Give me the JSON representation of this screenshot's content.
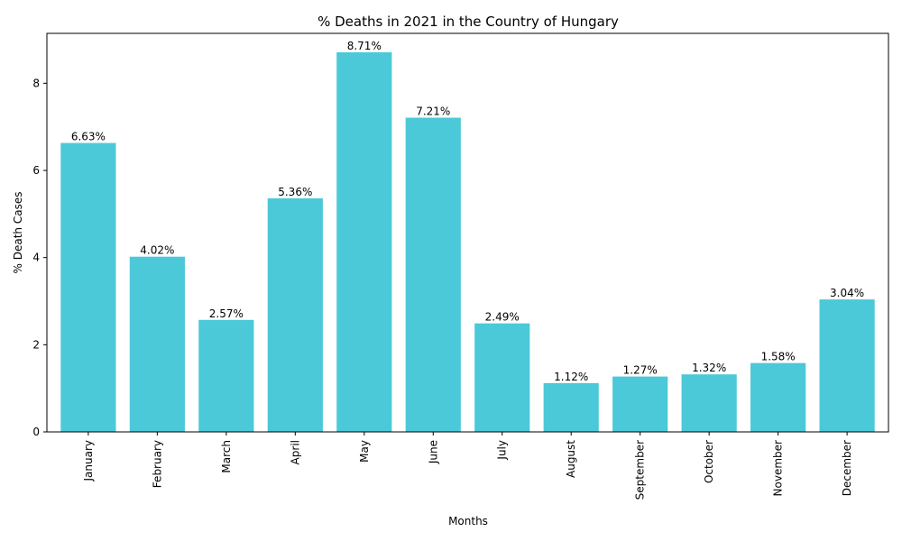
{
  "chart_data": {
    "type": "bar",
    "title": "% Deaths in 2021 in the Country of Hungary",
    "xlabel": "Months",
    "ylabel": "% Death Cases",
    "categories": [
      "January",
      "February",
      "March",
      "April",
      "May",
      "June",
      "July",
      "August",
      "September",
      "October",
      "November",
      "December"
    ],
    "values": [
      6.63,
      4.02,
      2.57,
      5.36,
      8.71,
      7.21,
      2.49,
      1.12,
      1.27,
      1.32,
      1.58,
      3.04
    ],
    "value_labels": [
      "6.63%",
      "4.02%",
      "2.57%",
      "5.36%",
      "8.71%",
      "7.21%",
      "2.49%",
      "1.12%",
      "1.27%",
      "1.32%",
      "1.58%",
      "3.04%"
    ],
    "ylim": [
      0,
      9.145
    ],
    "yticks": [
      0,
      2,
      4,
      6,
      8
    ],
    "grid": false,
    "bar_color": "#4bc9d8"
  }
}
